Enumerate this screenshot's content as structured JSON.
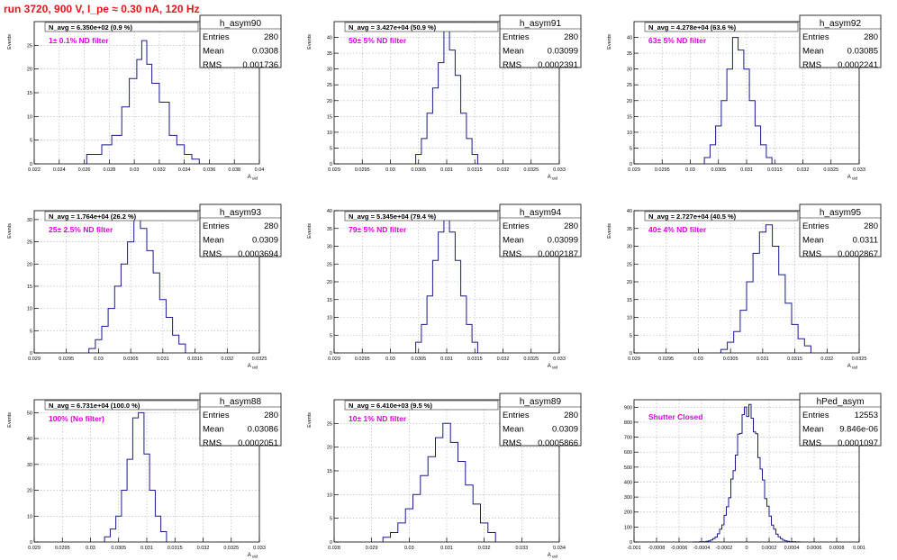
{
  "page": {
    "title": "run 3720,   900 V, I_pe ≈ 0.30 nA, 120 Hz"
  },
  "colors": {
    "title": "#e8141c",
    "histogram": "#1a1a8c",
    "filter_label": "#e000e0",
    "grid": "#b0b0b0"
  },
  "chart_data": [
    {
      "type": "histogram",
      "hist_name": "h_asym90",
      "navg_text": "N_avg = 6.350e+02 (0.9 %)",
      "filter_label": "1± 0.1% ND filter",
      "stats": [
        [
          "Entries",
          "280"
        ],
        [
          "Mean",
          "0.0308"
        ],
        [
          "RMS",
          "0.001736"
        ]
      ],
      "xlim": [
        0.022,
        0.04
      ],
      "ylim": [
        0,
        30
      ],
      "xlabel": "A_uid",
      "ylabel": "Events",
      "xticks": [
        "0.022",
        "0.024",
        "0.026",
        "0.028",
        "0.03",
        "0.032",
        "0.034",
        "0.036",
        "0.038",
        "0.04"
      ],
      "yticks": [
        "0",
        "5",
        "10",
        "15",
        "20",
        "25"
      ],
      "bin_edges": [
        0.0262,
        0.0274,
        0.0282,
        0.029,
        0.0296,
        0.0302,
        0.0306,
        0.031,
        0.0314,
        0.032,
        0.0328,
        0.0334,
        0.034,
        0.0346,
        0.0352
      ],
      "counts": [
        2,
        4,
        6,
        12,
        18,
        22,
        26,
        21,
        17,
        13,
        6,
        4,
        2,
        1
      ]
    },
    {
      "type": "histogram",
      "hist_name": "h_asym91",
      "navg_text": "N_avg = 3.427e+04 (50.9 %)",
      "filter_label": "50± 5% ND filter",
      "stats": [
        [
          "Entries",
          "280"
        ],
        [
          "Mean",
          "0.03099"
        ],
        [
          "RMS",
          "0.0002391"
        ]
      ],
      "xlim": [
        0.029,
        0.033
      ],
      "ylim": [
        0,
        45
      ],
      "xlabel": "A_uid",
      "ylabel": "Events",
      "xticks": [
        "0.029",
        "0.0295",
        "0.03",
        "0.0305",
        "0.031",
        "0.0315",
        "0.032",
        "0.0325",
        "0.033"
      ],
      "yticks": [
        "0",
        "5",
        "10",
        "15",
        "20",
        "25",
        "30",
        "35",
        "40"
      ],
      "bin_edges": [
        0.03045,
        0.03055,
        0.03065,
        0.03075,
        0.03085,
        0.03095,
        0.03105,
        0.03115,
        0.03125,
        0.03135,
        0.03145,
        0.03155
      ],
      "counts": [
        3,
        8,
        16,
        24,
        32,
        44,
        36,
        28,
        16,
        8,
        3
      ]
    },
    {
      "type": "histogram",
      "hist_name": "h_asym92",
      "navg_text": "N_avg = 4.278e+04 (63.6 %)",
      "filter_label": "63± 5% ND filter",
      "stats": [
        [
          "Entries",
          "280"
        ],
        [
          "Mean",
          "0.03085"
        ],
        [
          "RMS",
          "0.0002241"
        ]
      ],
      "xlim": [
        0.029,
        0.033
      ],
      "ylim": [
        0,
        45
      ],
      "xlabel": "A_uid",
      "ylabel": "Events",
      "xticks": [
        "0.029",
        "0.0295",
        "0.03",
        "0.0305",
        "0.031",
        "0.0315",
        "0.032",
        "0.0325",
        "0.033"
      ],
      "yticks": [
        "0",
        "5",
        "10",
        "15",
        "20",
        "25",
        "30",
        "35",
        "40"
      ],
      "bin_edges": [
        0.03025,
        0.03035,
        0.03045,
        0.03055,
        0.03065,
        0.03075,
        0.03085,
        0.03095,
        0.03105,
        0.03115,
        0.03125,
        0.03135,
        0.03145
      ],
      "counts": [
        2,
        6,
        12,
        20,
        30,
        40,
        36,
        30,
        20,
        12,
        6,
        2
      ]
    },
    {
      "type": "histogram",
      "hist_name": "h_asym93",
      "navg_text": "N_avg = 1.764e+04 (26.2 %)",
      "filter_label": "25± 2.5% ND filter",
      "stats": [
        [
          "Entries",
          "280"
        ],
        [
          "Mean",
          "0.0309"
        ],
        [
          "RMS",
          "0.0003694"
        ]
      ],
      "xlim": [
        0.029,
        0.0325
      ],
      "ylim": [
        0,
        32
      ],
      "xlabel": "A_uid",
      "ylabel": "Events",
      "xticks": [
        "0.029",
        "0.0295",
        "0.03",
        "0.0305",
        "0.031",
        "0.0315",
        "0.032",
        "0.0325"
      ],
      "yticks": [
        "0",
        "5",
        "10",
        "15",
        "20",
        "25",
        "30"
      ],
      "bin_edges": [
        0.02985,
        0.02995,
        0.03005,
        0.03015,
        0.03025,
        0.03035,
        0.03045,
        0.03055,
        0.03065,
        0.03075,
        0.03085,
        0.03095,
        0.03105,
        0.03115,
        0.03125,
        0.03135
      ],
      "counts": [
        1,
        3,
        6,
        10,
        15,
        20,
        25,
        30,
        28,
        23,
        18,
        12,
        8,
        4,
        2
      ]
    },
    {
      "type": "histogram",
      "hist_name": "h_asym94",
      "navg_text": "N_avg = 5.345e+04 (79.4 %)",
      "filter_label": "79± 5% ND filter",
      "stats": [
        [
          "Entries",
          "280"
        ],
        [
          "Mean",
          "0.03099"
        ],
        [
          "RMS",
          "0.0002187"
        ]
      ],
      "xlim": [
        0.029,
        0.033
      ],
      "ylim": [
        0,
        40
      ],
      "xlabel": "A_uid",
      "ylabel": "Events",
      "xticks": [
        "0.029",
        "0.0295",
        "0.03",
        "0.0305",
        "0.031",
        "0.0315",
        "0.032",
        "0.0325",
        "0.033"
      ],
      "yticks": [
        "0",
        "5",
        "10",
        "15",
        "20",
        "25",
        "30",
        "35",
        "40"
      ],
      "bin_edges": [
        0.03045,
        0.03055,
        0.03065,
        0.03075,
        0.03085,
        0.03095,
        0.03105,
        0.03115,
        0.03125,
        0.03135,
        0.03145,
        0.03155
      ],
      "counts": [
        3,
        8,
        16,
        26,
        34,
        38,
        34,
        26,
        16,
        8,
        3
      ]
    },
    {
      "type": "histogram",
      "hist_name": "h_asym95",
      "navg_text": "N_avg = 2.727e+04 (40.5 %)",
      "filter_label": "40± 4% ND filter",
      "stats": [
        [
          "Entries",
          "280"
        ],
        [
          "Mean",
          "0.0311"
        ],
        [
          "RMS",
          "0.0002867"
        ]
      ],
      "xlim": [
        0.029,
        0.0325
      ],
      "ylim": [
        0,
        40
      ],
      "xlabel": "A_uid",
      "ylabel": "Events",
      "xticks": [
        "0.029",
        "0.0295",
        "0.03",
        "0.0305",
        "0.031",
        "0.0315",
        "0.032",
        "0.0325"
      ],
      "yticks": [
        "0",
        "5",
        "10",
        "15",
        "20",
        "25",
        "30",
        "35",
        "40"
      ],
      "bin_edges": [
        0.03035,
        0.03045,
        0.03055,
        0.03065,
        0.03075,
        0.03085,
        0.03095,
        0.03105,
        0.03115,
        0.03125,
        0.03135,
        0.03145,
        0.03155,
        0.03165,
        0.03175
      ],
      "counts": [
        1,
        3,
        6,
        12,
        20,
        28,
        34,
        36,
        30,
        22,
        14,
        8,
        4,
        2
      ]
    },
    {
      "type": "histogram",
      "hist_name": "h_asym88",
      "navg_text": "N_avg = 6.731e+04 (100.0 %)",
      "filter_label": "100% (No filter)",
      "stats": [
        [
          "Entries",
          "280"
        ],
        [
          "Mean",
          "0.03086"
        ],
        [
          "RMS",
          "0.0002051"
        ]
      ],
      "xlim": [
        0.029,
        0.033
      ],
      "ylim": [
        0,
        55
      ],
      "xlabel": "A_uid",
      "ylabel": "Events",
      "xticks": [
        "0.029",
        "0.0295",
        "0.03",
        "0.0305",
        "0.031",
        "0.0315",
        "0.032",
        "0.0325",
        "0.033"
      ],
      "yticks": [
        "0",
        "10",
        "20",
        "30",
        "40",
        "50"
      ],
      "bin_edges": [
        0.03025,
        0.03035,
        0.03045,
        0.03055,
        0.03065,
        0.03075,
        0.03085,
        0.03095,
        0.03105,
        0.03115,
        0.03125,
        0.03135
      ],
      "counts": [
        2,
        5,
        10,
        20,
        32,
        48,
        50,
        34,
        20,
        10,
        4
      ]
    },
    {
      "type": "histogram",
      "hist_name": "h_asym89",
      "navg_text": "N_avg = 6.410e+03 (9.5 %)",
      "filter_label": "10± 1% ND filter",
      "stats": [
        [
          "Entries",
          "280"
        ],
        [
          "Mean",
          "0.0309"
        ],
        [
          "RMS",
          "0.0005866"
        ]
      ],
      "xlim": [
        0.028,
        0.034
      ],
      "ylim": [
        0,
        30
      ],
      "xlabel": "A_uid",
      "ylabel": "Events",
      "xticks": [
        "0.028",
        "0.029",
        "0.03",
        "0.031",
        "0.032",
        "0.033",
        "0.034"
      ],
      "yticks": [
        "0",
        "5",
        "10",
        "15",
        "20",
        "25"
      ],
      "bin_edges": [
        0.0293,
        0.0295,
        0.0297,
        0.0299,
        0.0301,
        0.0303,
        0.0305,
        0.0307,
        0.0309,
        0.0311,
        0.0313,
        0.0315,
        0.0317,
        0.0319,
        0.0321,
        0.0323
      ],
      "counts": [
        1,
        2,
        4,
        7,
        10,
        14,
        18,
        22,
        25,
        21,
        17,
        12,
        8,
        4,
        2
      ]
    },
    {
      "type": "histogram",
      "hist_name": "hPed_asym",
      "navg_text": "",
      "filter_label": "Shutter Closed",
      "stats": [
        [
          "Entries",
          "12553"
        ],
        [
          "Mean",
          "9.846e-06"
        ],
        [
          "RMS",
          "0.0001097"
        ]
      ],
      "xlim": [
        -0.001,
        0.001
      ],
      "ylim": [
        0,
        950
      ],
      "xlabel": "",
      "ylabel": "",
      "xticks": [
        "-0.001",
        "-0.0008",
        "-0.0006",
        "-0.0004",
        "-0.0002",
        "0",
        "0.0002",
        "0.0004",
        "0.0006",
        "0.0008",
        "0.001"
      ],
      "yticks": [
        "0",
        "100",
        "200",
        "300",
        "400",
        "500",
        "600",
        "700",
        "800",
        "900"
      ],
      "gaussian": {
        "mean": 9.8e-06,
        "sigma": 0.00011,
        "peak": 890,
        "from": -0.00048,
        "to": 0.00048,
        "nbins": 48
      }
    }
  ]
}
